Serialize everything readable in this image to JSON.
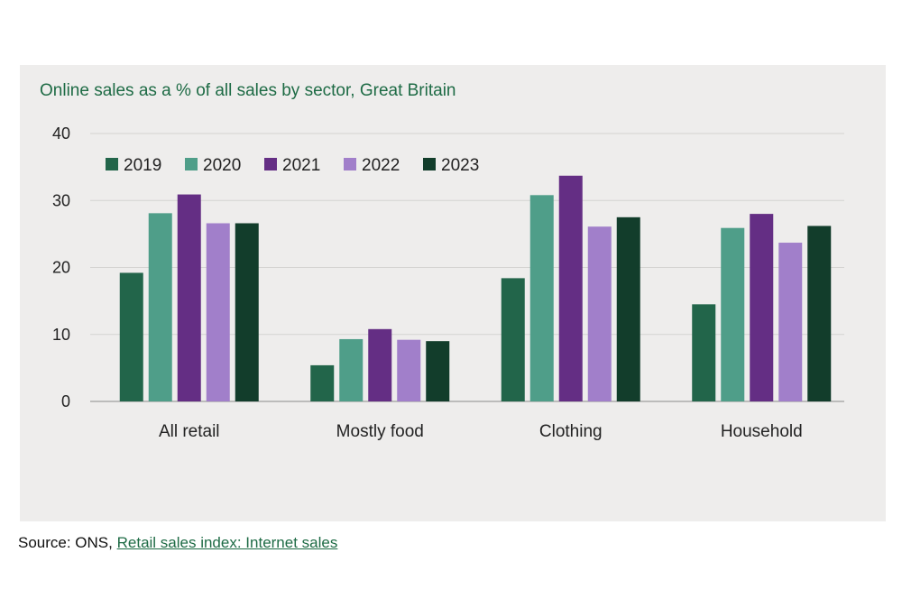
{
  "chart_data": {
    "type": "bar",
    "title": "Online sales as a % of all sales by sector, Great Britain",
    "categories": [
      "All retail",
      "Mostly food",
      "Clothing",
      "Household"
    ],
    "series": [
      {
        "name": "2019",
        "color": "#22654a",
        "values": [
          19.2,
          5.4,
          18.4,
          14.5
        ]
      },
      {
        "name": "2020",
        "color": "#4f9e89",
        "values": [
          28.1,
          9.3,
          30.8,
          25.9
        ]
      },
      {
        "name": "2021",
        "color": "#642e84",
        "values": [
          30.9,
          10.8,
          33.7,
          28.0
        ]
      },
      {
        "name": "2022",
        "color": "#a17fca",
        "values": [
          26.6,
          9.2,
          26.1,
          23.7
        ]
      },
      {
        "name": "2023",
        "color": "#123d2b",
        "values": [
          26.6,
          9.0,
          27.5,
          26.2
        ]
      }
    ],
    "yticks": [
      "0",
      "10",
      "20",
      "30",
      "40"
    ],
    "ylim": [
      0,
      40
    ],
    "xlabel": "",
    "ylabel": "",
    "grid": true,
    "legend_position": "top-left"
  },
  "source": {
    "prefix": "Source: ONS,",
    "link_text": "Retail sales index: Internet sales"
  }
}
